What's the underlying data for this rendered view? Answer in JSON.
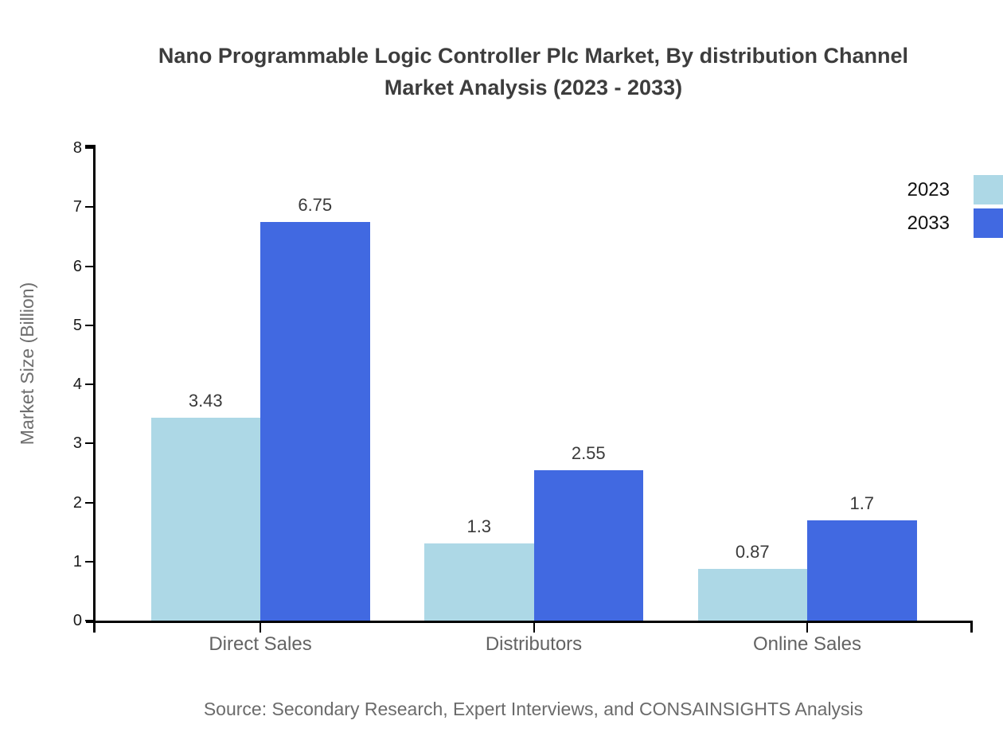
{
  "title": {
    "line1": "Nano Programmable Logic Controller Plc Market, By distribution Channel",
    "line2": "Market Analysis (2023 - 2033)"
  },
  "y_axis": {
    "label": "Market Size (Billion)",
    "ticks": [
      0,
      1,
      2,
      3,
      4,
      5,
      6,
      7,
      8
    ]
  },
  "x_axis": {
    "categories": [
      "Direct Sales",
      "Distributors",
      "Online Sales"
    ]
  },
  "legend": {
    "position": "top-right",
    "items": [
      {
        "label": "2023",
        "color": "#ADD8E6"
      },
      {
        "label": "2033",
        "color": "#4169E1"
      }
    ]
  },
  "source_note": "Source: Secondary Research, Expert Interviews, and CONSAINSIGHTS Analysis",
  "colors": {
    "series_2023": "#ADD8E6",
    "series_2033": "#4169E1",
    "axis": "#000000",
    "title_text": "#3d3d3d",
    "category_text": "#636363",
    "source_text": "#6b6b6b"
  },
  "chart_data": {
    "type": "bar",
    "title": "Nano Programmable Logic Controller Plc Market, By distribution Channel Market Analysis (2023 - 2033)",
    "categories": [
      "Direct Sales",
      "Distributors",
      "Online Sales"
    ],
    "series": [
      {
        "name": "2023",
        "color": "#ADD8E6",
        "values": [
          3.43,
          1.3,
          0.87
        ]
      },
      {
        "name": "2033",
        "color": "#4169E1",
        "values": [
          6.75,
          2.55,
          1.7
        ]
      }
    ],
    "xlabel": "",
    "ylabel": "Market Size (Billion)",
    "ylim": [
      0,
      8
    ],
    "y_tick_step": 1,
    "grid": false,
    "legend_position": "top-right",
    "bar_value_labels": true
  }
}
